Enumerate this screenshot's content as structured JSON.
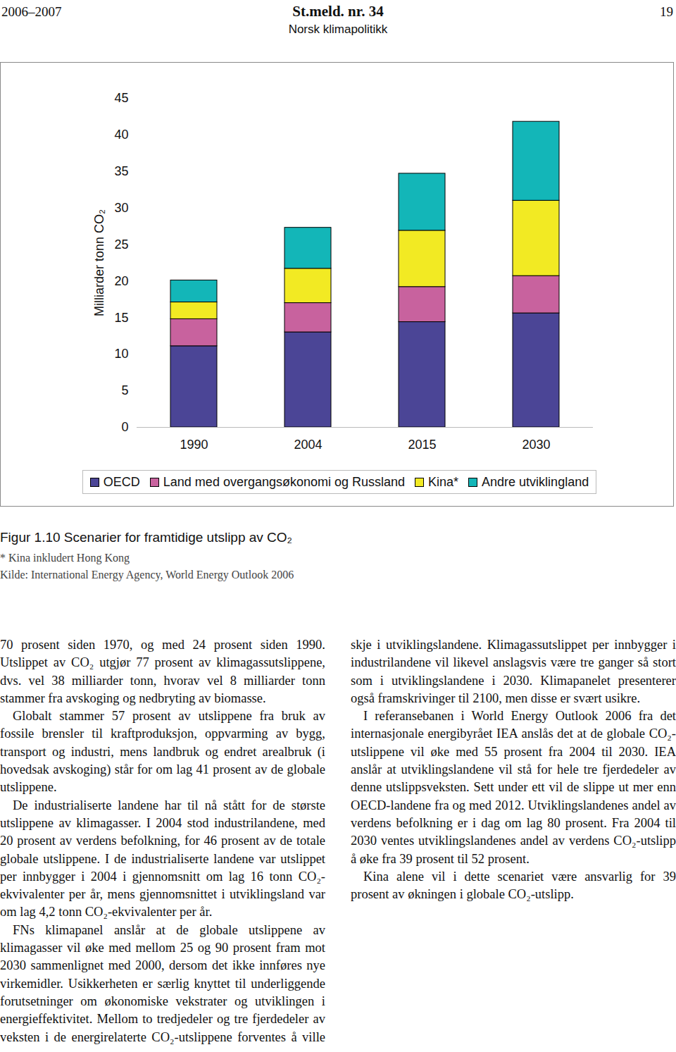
{
  "header": {
    "left": "2006–2007",
    "center": "St.meld. nr. 34",
    "right": "19",
    "subtitle": "Norsk klimapolitikk"
  },
  "chart_data": {
    "type": "bar",
    "stacked": true,
    "categories": [
      "1990",
      "2004",
      "2015",
      "2030"
    ],
    "series": [
      {
        "name": "OECD",
        "color": "#4b4596",
        "values": [
          11.1,
          13.0,
          14.4,
          15.6
        ]
      },
      {
        "name": "Land med overgangsøkonomi og Russland",
        "color": "#c8629e",
        "values": [
          3.7,
          4.0,
          4.8,
          5.1
        ]
      },
      {
        "name": "Kina*",
        "color": "#f2ea23",
        "values": [
          2.3,
          4.7,
          7.7,
          10.3
        ]
      },
      {
        "name": "Andre utviklingland",
        "color": "#13b6b8",
        "values": [
          3.0,
          5.6,
          7.8,
          10.8
        ]
      }
    ],
    "ylabel": "Milliarder tonn CO₂",
    "ylim": [
      0,
      45
    ],
    "yticks": [
      0,
      5,
      10,
      15,
      20,
      25,
      30,
      35,
      40,
      45
    ],
    "grid": false,
    "legend": "bottom"
  },
  "caption": {
    "title": "Figur 1.10  Scenarier for framtidige utslipp av CO₂",
    "notes": [
      "* Kina inkludert Hong Kong",
      "Kilde: International Energy Agency, World Energy Outlook 2006"
    ]
  },
  "body": {
    "paragraphs": [
      "70 prosent siden 1970, og med 24 prosent siden 1990. Utslippet av CO₂ utgjør 77 prosent av klimagassutslippene, dvs. vel 38 milliarder tonn, hvorav vel 8 milliarder tonn stammer fra avskoging og nedbryting av biomasse.",
      "Globalt stammer 57 prosent av utslippene fra bruk av fossile brensler til kraftproduksjon, oppvarming av bygg, transport og industri, mens landbruk og endret arealbruk (i hovedsak avskoging) står for om lag 41 prosent av de globale utslippene.",
      "De industrialiserte landene har til nå stått for de største utslippene av klimagasser. I 2004 stod industrilandene, med 20 prosent av verdens befolkning, for 46 prosent av de totale globale utslippene. I de industrialiserte landene var utslippet per innbygger i 2004 i gjennomsnitt om lag 16 tonn CO₂-ekvivalenter per år, mens gjennomsnittet i utviklingsland var om lag 4,2 tonn CO₂-ekvivalenter per år.",
      "FNs klimapanel anslår at de globale utslippene av klimagasser vil øke med mellom 25 og 90 prosent fram mot 2030 sammenlignet med 2000, dersom det ikke innføres nye virkemidler. Usikkerheten er særlig knyttet til underliggende forutsetninger om økonomiske vekstrater og utviklingen i energieffektivitet. Mellom to tredjedeler og tre fjerdedeler av veksten i de energirelaterte CO₂-utslippene forventes å ville skje i utviklingslandene. Klimagassutslippet per innbygger i industrilandene vil likevel anslagsvis være tre ganger så stort som i utviklingslandene i 2030. Klimapanelet presenterer også framskrivinger til 2100, men disse er svært usikre.",
      "I referansebanen i World Energy Outlook 2006 fra det internasjonale energibyrået IEA anslås det at de globale CO₂-utslippene vil øke med 55 prosent fra 2004 til 2030. IEA anslår at utviklingslandene vil stå for hele tre fjerdedeler av denne utslippsveksten. Sett under ett vil de slippe ut mer enn OECD-landene fra og med 2012. Utviklingslandenes andel av verdens befolkning er i dag om lag 80 prosent. Fra 2004 til 2030 ventes utviklingslandenes andel av verdens CO₂-utslipp å øke fra 39 prosent til 52 prosent.",
      "Kina alene vil i dette scenariet være ansvarlig for 39 prosent av økningen i globale CO₂-utslipp."
    ]
  }
}
